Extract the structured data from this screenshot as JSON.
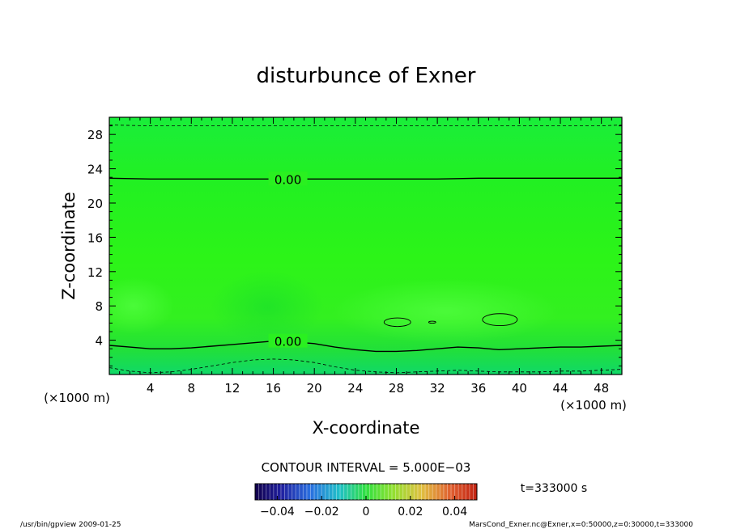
{
  "chart_data": {
    "type": "contour",
    "title": "disturbunce of Exner",
    "xlabel": "X-coordinate",
    "ylabel": "Z-coordinate",
    "x_unit": "(×1000 m)",
    "y_unit": "(×1000 m)",
    "xlim": [
      0,
      50
    ],
    "ylim": [
      0,
      30
    ],
    "x_ticks": [
      4,
      8,
      12,
      16,
      20,
      24,
      28,
      32,
      36,
      40,
      44,
      48
    ],
    "y_ticks": [
      4,
      8,
      12,
      16,
      20,
      24,
      28
    ],
    "contour_labels": [
      {
        "text": "0.00",
        "x": 16,
        "z": 22.8
      },
      {
        "text": "0.00",
        "x": 16,
        "z": 3.9
      }
    ],
    "contours": [
      {
        "value": 0.0,
        "style": "solid",
        "x": [
          0,
          4,
          8,
          12,
          16,
          20,
          24,
          28,
          32,
          36,
          40,
          44,
          48,
          50
        ],
        "z": [
          22.9,
          22.8,
          22.8,
          22.8,
          22.8,
          22.8,
          22.8,
          22.8,
          22.8,
          22.9,
          22.9,
          22.9,
          22.9,
          22.9
        ]
      },
      {
        "value": 0.0,
        "style": "solid",
        "x": [
          0,
          2,
          4,
          6,
          8,
          10,
          12,
          14,
          16,
          18,
          20,
          22,
          24,
          26,
          28,
          30,
          32,
          34,
          36,
          38,
          40,
          42,
          44,
          46,
          48,
          50
        ],
        "z": [
          3.4,
          3.2,
          3.0,
          3.0,
          3.1,
          3.3,
          3.5,
          3.7,
          3.9,
          3.8,
          3.6,
          3.2,
          2.9,
          2.7,
          2.7,
          2.8,
          3.0,
          3.2,
          3.1,
          2.9,
          3.0,
          3.1,
          3.2,
          3.2,
          3.3,
          3.4
        ]
      },
      {
        "value": -0.005,
        "style": "dashed",
        "x": [
          0,
          2,
          4,
          6,
          8,
          10,
          12,
          14,
          16,
          18,
          20,
          22,
          24,
          26,
          28,
          30,
          32,
          34,
          36,
          38,
          40,
          42,
          44,
          46,
          48,
          50
        ],
        "z": [
          0.8,
          0.4,
          0.2,
          0.3,
          0.6,
          1.0,
          1.4,
          1.7,
          1.8,
          1.7,
          1.4,
          0.9,
          0.5,
          0.3,
          0.2,
          0.3,
          0.4,
          0.5,
          0.4,
          0.3,
          0.3,
          0.3,
          0.4,
          0.4,
          0.5,
          0.6
        ]
      },
      {
        "value": 0.005,
        "style": "dashed",
        "x": [
          0,
          4,
          8,
          12,
          16,
          20,
          24,
          28,
          32,
          36,
          40,
          44,
          48,
          50
        ],
        "z": [
          29.1,
          29.0,
          29.0,
          29.0,
          29.0,
          29.0,
          29.0,
          29.0,
          29.0,
          29.0,
          29.0,
          29.0,
          29.0,
          29.1
        ]
      }
    ],
    "closed_contours": [
      {
        "value": 0.0,
        "cx": 28.1,
        "cz": 6.1,
        "rx": 1.3,
        "rz": 0.5
      },
      {
        "value": 0.0,
        "cx": 31.5,
        "cz": 6.1,
        "rx": 0.35,
        "rz": 0.12
      },
      {
        "value": 0.0,
        "cx": 38.1,
        "cz": 6.4,
        "rx": 1.7,
        "rz": 0.7
      }
    ],
    "colorbar": {
      "ticks": [
        -0.04,
        -0.02,
        0,
        0.02,
        0.04
      ],
      "tick_labels": [
        "−0.04",
        "−0.02",
        "0",
        "0.02",
        "0.04"
      ],
      "range": [
        -0.05,
        0.05
      ]
    },
    "contour_interval_text": "CONTOUR INTERVAL = 5.000E−03",
    "time_text": "t=333000 s"
  },
  "footer": {
    "left": "/usr/bin/gpview   2009-01-25",
    "right": "MarsCond_Exner.nc@Exner,x=0:50000,z=0:30000,t=333000"
  },
  "colors": {
    "field_green": "#22ee22",
    "field_high": "#44ff33",
    "field_low": "#11dd66"
  }
}
